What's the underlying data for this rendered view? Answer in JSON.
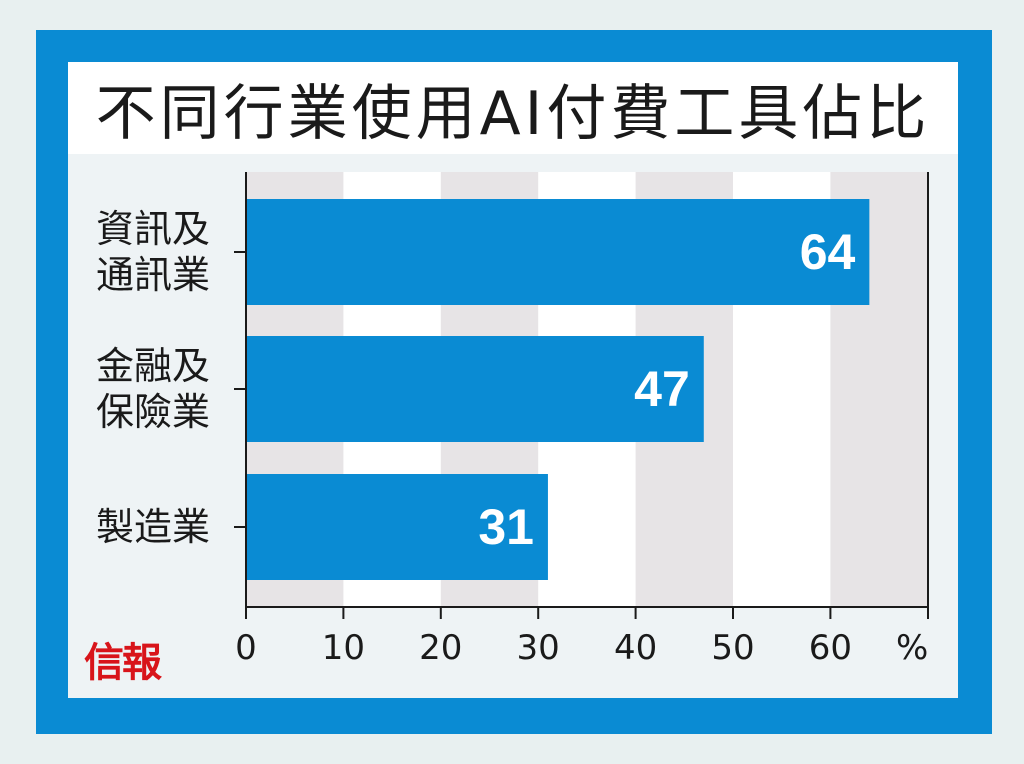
{
  "chart_data": {
    "type": "bar",
    "orientation": "horizontal",
    "title": "不同行業使用AI付費工具佔比",
    "categories": [
      "資訊及\n通訊業",
      "金融及\n保險業",
      "製造業"
    ],
    "values": [
      64,
      47,
      31
    ],
    "value_labels": [
      "64",
      "47",
      "31"
    ],
    "xlim": [
      0,
      70
    ],
    "xticks": [
      "0",
      "10",
      "20",
      "30",
      "40",
      "50",
      "60"
    ],
    "xunit": "%",
    "grid": "alternating vertical bands",
    "colors": {
      "bar": "#0a8bd3",
      "frame": "#0a8bd3",
      "band": "#e7e4e6",
      "plot_bg": "#ffffff",
      "panel_bg": "#eef3f5",
      "value_label": "#ffffff"
    }
  },
  "logo_text": "信報"
}
